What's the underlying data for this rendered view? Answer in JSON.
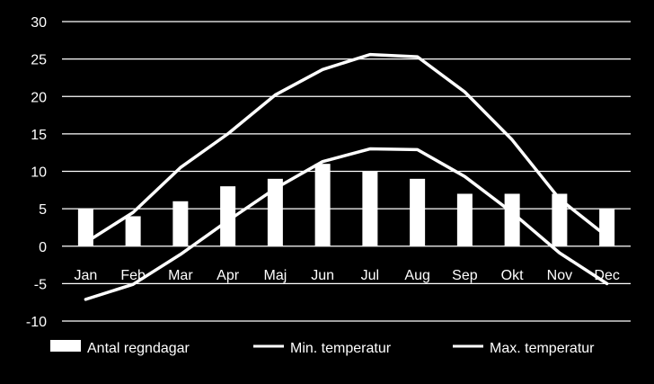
{
  "chart_data": {
    "type": "bar",
    "categories": [
      "Jan",
      "Feb",
      "Mar",
      "Apr",
      "Maj",
      "Jun",
      "Jul",
      "Aug",
      "Sep",
      "Okt",
      "Nov",
      "Dec"
    ],
    "ylim": [
      -10,
      30
    ],
    "yticks": [
      -10,
      -5,
      0,
      5,
      10,
      15,
      20,
      25,
      30
    ],
    "grid": true,
    "legend_position": "bottom",
    "background": "#000000",
    "foreground": "#ffffff",
    "series": [
      {
        "name": "Antal regndagar",
        "type": "bar",
        "color": "#ffffff",
        "values": [
          5,
          4,
          6,
          8,
          9,
          11,
          10,
          9,
          7,
          7,
          7,
          5
        ]
      },
      {
        "name": "Min. temperatur",
        "type": "line",
        "color": "#ffffff",
        "values": [
          -7.1,
          -5.1,
          -1.1,
          3.4,
          7.7,
          11.3,
          13,
          12.9,
          9.3,
          4.5,
          -0.9,
          -5
        ]
      },
      {
        "name": "Max. temperatur",
        "type": "line",
        "color": "#ffffff",
        "values": [
          0.5,
          4.5,
          10.5,
          15,
          20.2,
          23.6,
          25.6,
          25.3,
          20.6,
          14.2,
          6.3,
          1.3
        ]
      }
    ]
  }
}
